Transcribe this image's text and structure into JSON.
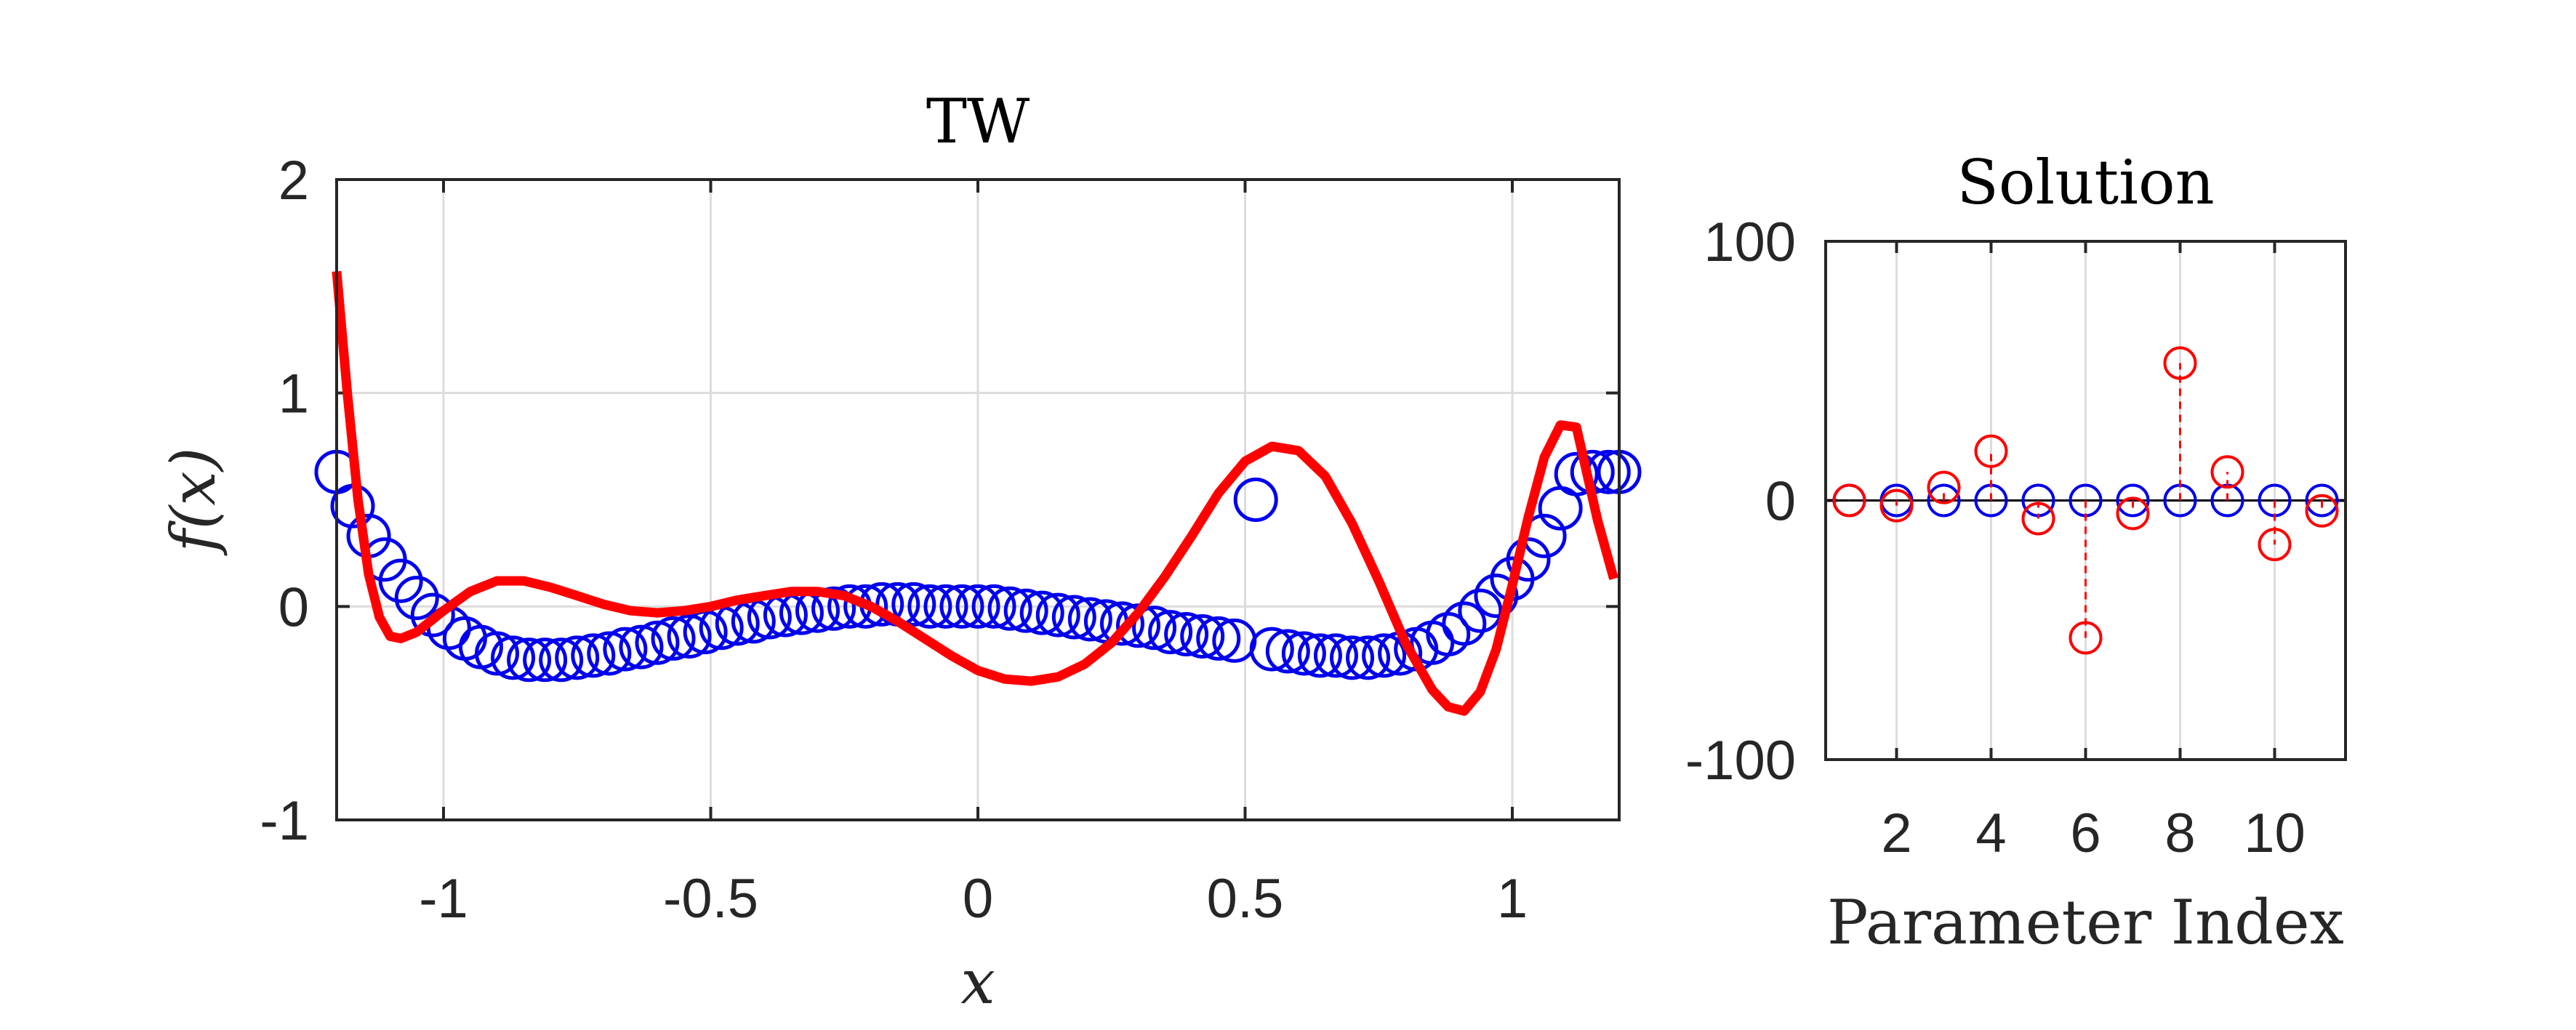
{
  "chart_data": [
    {
      "type": "scatter",
      "title": "TW",
      "xlabel": "x",
      "ylabel": "f(x)",
      "xlim": [
        -1.2,
        1.2
      ],
      "ylim": [
        -1,
        2
      ],
      "xticks": [
        -1,
        -0.5,
        0,
        0.5,
        1
      ],
      "xtick_labels": [
        "-1",
        "-0.5",
        "0",
        "0.5",
        "1"
      ],
      "yticks": [
        -1,
        0,
        1,
        2
      ],
      "ytick_labels": [
        "-1",
        "0",
        "1",
        "2"
      ],
      "grid": true,
      "colors": {
        "markers": "#0000ee",
        "line": "#ff0000"
      },
      "series": [
        {
          "marker": "circle",
          "x": [
            -1.2,
            -1.17,
            -1.14,
            -1.11,
            -1.08,
            -1.05,
            -1.02,
            -0.99,
            -0.96,
            -0.93,
            -0.9,
            -0.87,
            -0.84,
            -0.81,
            -0.78,
            -0.75,
            -0.72,
            -0.69,
            -0.66,
            -0.63,
            -0.6,
            -0.57,
            -0.54,
            -0.51,
            -0.48,
            -0.45,
            -0.42,
            -0.39,
            -0.36,
            -0.33,
            -0.3,
            -0.27,
            -0.24,
            -0.21,
            -0.18,
            -0.15,
            -0.12,
            -0.09,
            -0.06,
            -0.03,
            0.0,
            0.03,
            0.06,
            0.09,
            0.12,
            0.15,
            0.18,
            0.21,
            0.24,
            0.27,
            0.3,
            0.33,
            0.36,
            0.39,
            0.42,
            0.45,
            0.48,
            0.52,
            0.55,
            0.58,
            0.61,
            0.64,
            0.67,
            0.7,
            0.73,
            0.76,
            0.79,
            0.82,
            0.85,
            0.88,
            0.91,
            0.94,
            0.97,
            1.0,
            1.03,
            1.06,
            1.09,
            1.12,
            1.15,
            1.18,
            1.2
          ],
          "y": [
            0.63,
            0.47,
            0.33,
            0.22,
            0.12,
            0.04,
            -0.04,
            -0.1,
            -0.15,
            -0.19,
            -0.22,
            -0.24,
            -0.25,
            -0.25,
            -0.25,
            -0.24,
            -0.23,
            -0.22,
            -0.2,
            -0.19,
            -0.17,
            -0.15,
            -0.14,
            -0.12,
            -0.1,
            -0.08,
            -0.07,
            -0.05,
            -0.04,
            -0.03,
            -0.02,
            -0.01,
            0.0,
            0.0,
            0.01,
            0.01,
            0.01,
            0.0,
            0.0,
            0.0,
            0.0,
            0.0,
            -0.01,
            -0.02,
            -0.03,
            -0.04,
            -0.05,
            -0.06,
            -0.07,
            -0.08,
            -0.09,
            -0.1,
            -0.12,
            -0.13,
            -0.14,
            -0.15,
            -0.16,
            0.5,
            -0.2,
            -0.21,
            -0.22,
            -0.23,
            -0.23,
            -0.24,
            -0.24,
            -0.23,
            -0.22,
            -0.2,
            -0.17,
            -0.13,
            -0.08,
            -0.02,
            0.05,
            0.13,
            0.22,
            0.33,
            0.46,
            0.62,
            0.63,
            0.63,
            0.63
          ]
        },
        {
          "line": "solid",
          "x": [
            -1.2,
            -1.18,
            -1.16,
            -1.14,
            -1.12,
            -1.1,
            -1.08,
            -1.05,
            -1.0,
            -0.95,
            -0.9,
            -0.85,
            -0.8,
            -0.75,
            -0.7,
            -0.65,
            -0.6,
            -0.55,
            -0.5,
            -0.45,
            -0.4,
            -0.35,
            -0.3,
            -0.25,
            -0.2,
            -0.15,
            -0.1,
            -0.05,
            0.0,
            0.05,
            0.1,
            0.15,
            0.2,
            0.25,
            0.3,
            0.35,
            0.4,
            0.45,
            0.5,
            0.55,
            0.6,
            0.65,
            0.7,
            0.75,
            0.8,
            0.85,
            0.88,
            0.91,
            0.94,
            0.97,
            1.0,
            1.03,
            1.06,
            1.09,
            1.12,
            1.16,
            1.19
          ],
          "y": [
            1.57,
            1.0,
            0.5,
            0.15,
            -0.05,
            -0.14,
            -0.15,
            -0.12,
            -0.02,
            0.07,
            0.12,
            0.12,
            0.09,
            0.05,
            0.01,
            -0.02,
            -0.03,
            -0.02,
            0.0,
            0.03,
            0.05,
            0.07,
            0.07,
            0.05,
            0.0,
            -0.07,
            -0.15,
            -0.23,
            -0.3,
            -0.34,
            -0.35,
            -0.33,
            -0.27,
            -0.17,
            -0.03,
            0.14,
            0.33,
            0.53,
            0.68,
            0.75,
            0.73,
            0.61,
            0.39,
            0.12,
            -0.17,
            -0.39,
            -0.47,
            -0.49,
            -0.4,
            -0.2,
            0.1,
            0.42,
            0.7,
            0.85,
            0.84,
            0.4,
            0.13
          ]
        }
      ]
    },
    {
      "type": "stem",
      "title": "Solution",
      "xlabel": "Parameter Index",
      "ylabel": "",
      "xlim": [
        0.5,
        11.5
      ],
      "ylim": [
        -100,
        100
      ],
      "xticks": [
        2,
        4,
        6,
        8,
        10
      ],
      "xtick_labels": [
        "2",
        "4",
        "6",
        "8",
        "10"
      ],
      "yticks": [
        -100,
        0,
        100
      ],
      "ytick_labels": [
        "-100",
        "0",
        "100"
      ],
      "grid": true,
      "colors": {
        "blue": "#0000ee",
        "red": "#ff0000"
      },
      "series": [
        {
          "color": "blue",
          "x": [
            1,
            2,
            3,
            4,
            5,
            6,
            7,
            8,
            9,
            10,
            11
          ],
          "values": [
            0,
            0,
            0,
            0,
            0,
            0,
            0,
            0,
            0,
            0,
            0
          ]
        },
        {
          "color": "red",
          "x": [
            1,
            2,
            3,
            4,
            5,
            6,
            7,
            8,
            9,
            10,
            11
          ],
          "values": [
            0,
            -2,
            5,
            19,
            -7,
            -53,
            -5,
            53,
            11,
            -17,
            -4
          ]
        }
      ]
    }
  ]
}
